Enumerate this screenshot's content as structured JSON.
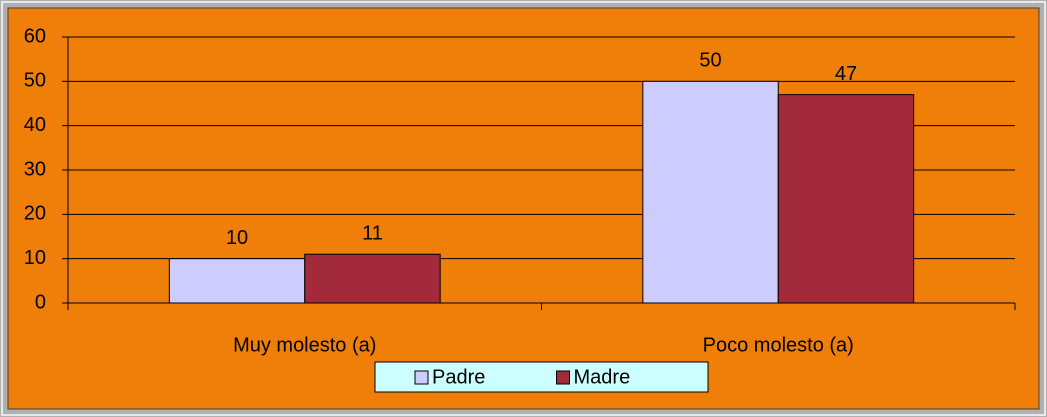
{
  "chart_data": {
    "type": "bar",
    "categories": [
      "Muy molesto (a)",
      "Poco molesto (a)"
    ],
    "series": [
      {
        "name": "Padre",
        "color": "#ccccff",
        "values": [
          10,
          50
        ]
      },
      {
        "name": "Madre",
        "color": "#a32a3a",
        "values": [
          11,
          47
        ]
      }
    ],
    "ylim": [
      0,
      60
    ],
    "yticks": [
      0,
      10,
      20,
      30,
      40,
      50,
      60
    ],
    "grid": true,
    "legend": "bottom"
  }
}
